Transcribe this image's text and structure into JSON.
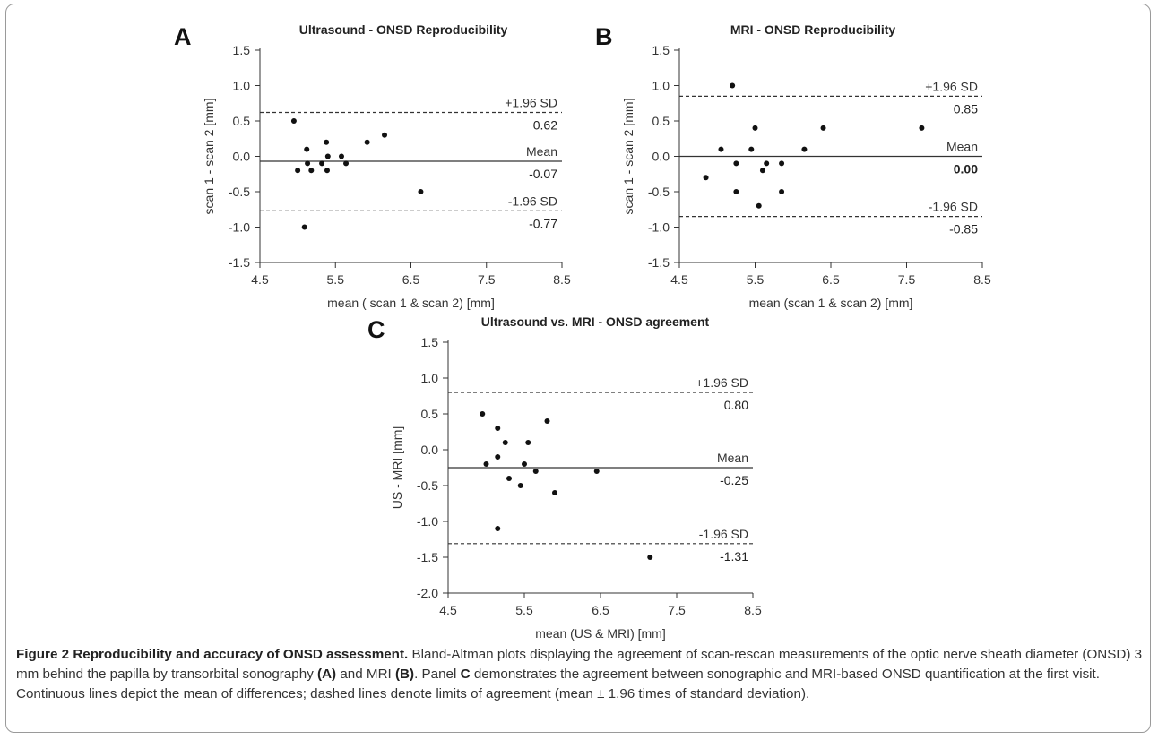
{
  "chart_data": [
    {
      "type": "scatter",
      "panel_label": "A",
      "title": "Ultrasound - ONSD Reproducibility",
      "xlabel": "mean ( scan 1 & scan 2) [mm]",
      "ylabel": "scan 1 - scan 2 [mm]",
      "xlim": [
        4.5,
        8.5
      ],
      "ylim": [
        -1.5,
        1.5
      ],
      "xticks": [
        "4.5",
        "5.5",
        "6.5",
        "7.5",
        "8.5"
      ],
      "yticks": [
        "1.5",
        "1.0",
        "0.5",
        "0.0",
        "-0.5",
        "-1.0",
        "-1.5"
      ],
      "points": [
        [
          4.95,
          0.5
        ],
        [
          5.0,
          -0.2
        ],
        [
          5.12,
          0.1
        ],
        [
          5.13,
          -0.1
        ],
        [
          5.18,
          -0.2
        ],
        [
          5.32,
          -0.1
        ],
        [
          5.38,
          0.2
        ],
        [
          5.39,
          -0.2
        ],
        [
          5.4,
          0.0
        ],
        [
          5.58,
          0.0
        ],
        [
          5.64,
          -0.1
        ],
        [
          5.92,
          0.2
        ],
        [
          6.15,
          0.3
        ],
        [
          6.63,
          -0.5
        ],
        [
          5.09,
          -1.0
        ]
      ],
      "reference_lines": [
        {
          "name": "+1.96 SD",
          "value_label": "0.62",
          "y": 0.62,
          "style": "dashed",
          "bold": false
        },
        {
          "name": "Mean",
          "value_label": "-0.07",
          "y": -0.07,
          "style": "solid",
          "bold": false
        },
        {
          "name": "-1.96 SD",
          "value_label": "-0.77",
          "y": -0.77,
          "style": "dashed",
          "bold": false
        }
      ]
    },
    {
      "type": "scatter",
      "panel_label": "B",
      "title": "MRI  - ONSD Reproducibility",
      "xlabel": "mean (scan 1 & scan 2) [mm]",
      "ylabel": "scan 1 - scan 2 [mm]",
      "xlim": [
        4.5,
        8.5
      ],
      "ylim": [
        -1.5,
        1.5
      ],
      "xticks": [
        "4.5",
        "5.5",
        "6.5",
        "7.5",
        "8.5"
      ],
      "yticks": [
        "1.5",
        "1.0",
        "0.5",
        "0.0",
        "-0.5",
        "-1.0",
        "-1.5"
      ],
      "points": [
        [
          4.85,
          -0.3
        ],
        [
          5.05,
          0.1
        ],
        [
          5.2,
          1.0
        ],
        [
          5.25,
          -0.1
        ],
        [
          5.25,
          -0.5
        ],
        [
          5.45,
          0.1
        ],
        [
          5.5,
          0.4
        ],
        [
          5.55,
          -0.7
        ],
        [
          5.6,
          -0.2
        ],
        [
          5.65,
          -0.1
        ],
        [
          5.85,
          -0.1
        ],
        [
          5.85,
          -0.5
        ],
        [
          6.15,
          0.1
        ],
        [
          6.4,
          0.4
        ],
        [
          7.7,
          0.4
        ]
      ],
      "reference_lines": [
        {
          "name": "+1.96 SD",
          "value_label": "0.85",
          "y": 0.85,
          "style": "dashed",
          "bold": false
        },
        {
          "name": "Mean",
          "value_label": "0.00",
          "y": 0.0,
          "style": "solid",
          "bold": true
        },
        {
          "name": "-1.96 SD",
          "value_label": "-0.85",
          "y": -0.85,
          "style": "dashed",
          "bold": false
        }
      ]
    },
    {
      "type": "scatter",
      "panel_label": "C",
      "title": "Ultrasound vs. MRI - ONSD agreement",
      "xlabel": "mean (US & MRI) [mm]",
      "ylabel": "US - MRI [mm]",
      "xlim": [
        4.5,
        8.5
      ],
      "ylim": [
        -2.0,
        1.5
      ],
      "xticks": [
        "4.5",
        "5.5",
        "6.5",
        "7.5",
        "8.5"
      ],
      "yticks": [
        "1.5",
        "1.0",
        "0.5",
        "0.0",
        "-0.5",
        "-1.0",
        "-1.5",
        "-2.0"
      ],
      "points": [
        [
          4.95,
          0.5
        ],
        [
          5.0,
          -0.2
        ],
        [
          5.15,
          0.3
        ],
        [
          5.15,
          -0.1
        ],
        [
          5.15,
          -1.1
        ],
        [
          5.25,
          0.1
        ],
        [
          5.3,
          -0.4
        ],
        [
          5.45,
          -0.5
        ],
        [
          5.5,
          -0.2
        ],
        [
          5.55,
          0.1
        ],
        [
          5.65,
          -0.3
        ],
        [
          5.8,
          0.4
        ],
        [
          5.9,
          -0.6
        ],
        [
          6.45,
          -0.3
        ],
        [
          7.15,
          -1.5
        ]
      ],
      "reference_lines": [
        {
          "name": "+1.96 SD",
          "value_label": "0.80",
          "y": 0.8,
          "style": "dashed",
          "bold": false
        },
        {
          "name": "Mean",
          "value_label": "-0.25",
          "y": -0.25,
          "style": "solid",
          "bold": false
        },
        {
          "name": "-1.96 SD",
          "value_label": "-1.31",
          "y": -1.31,
          "style": "dashed",
          "bold": false
        }
      ]
    }
  ],
  "caption": {
    "figure_label": "Figure 2",
    "title": "Reproducibility and accuracy of ONSD assessment.",
    "text_1": "Bland-Altman plots displaying the agreement of scan-rescan measurements of the optic nerve sheath diameter (ONSD) 3 mm behind the papilla by transorbital sonography",
    "ref_a": "(A)",
    "text_2": "and MRI",
    "ref_b": "(B)",
    "text_3": ". Panel",
    "ref_c": "C",
    "text_4": "demonstrates the agreement between sonographic and MRI-based ONSD quantification at the first visit. Continuous lines depict the mean of differences; dashed lines denote limits of agreement (mean ± 1.96 times of standard deviation)."
  }
}
